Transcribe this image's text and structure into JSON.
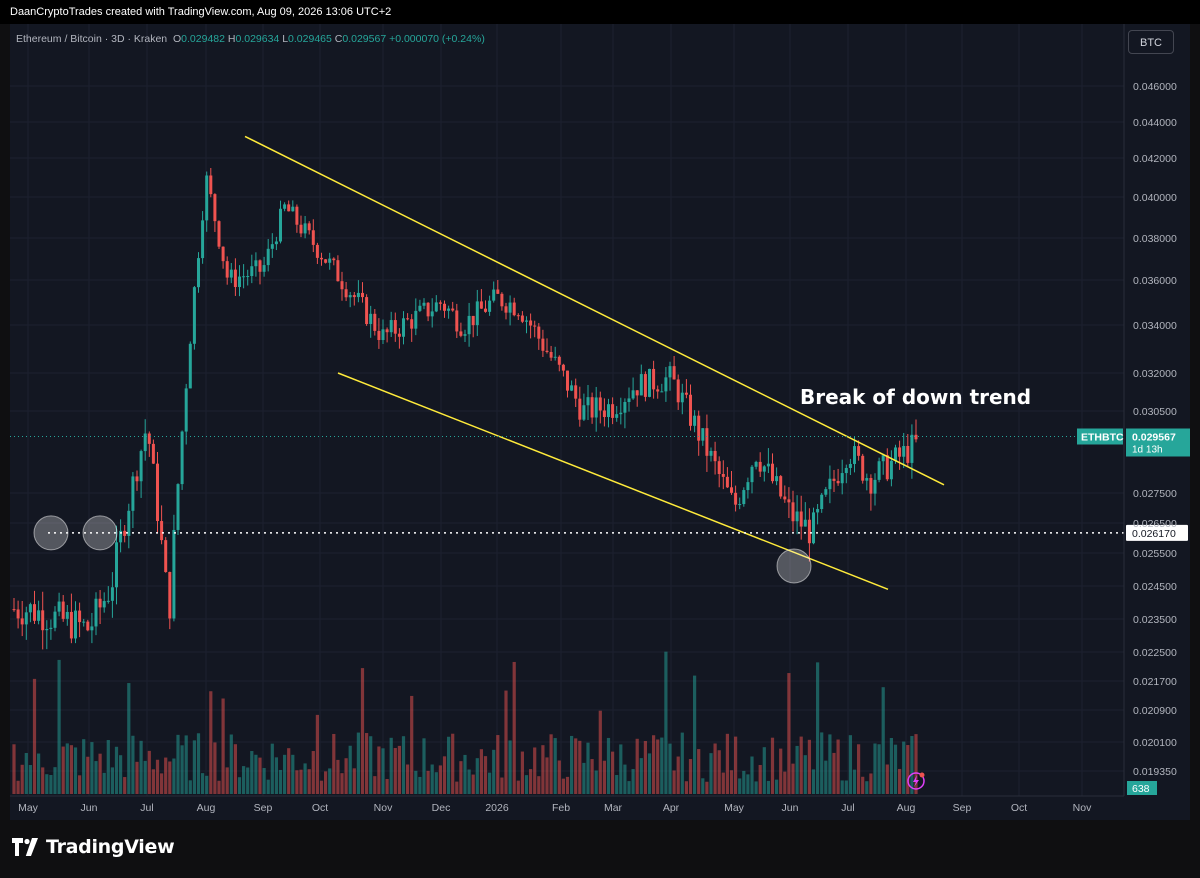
{
  "header": {
    "credit": "DaanCryptoTrades created with TradingView.com, Aug 09, 2026 13:06 UTC+2"
  },
  "legend": {
    "symbol": "Ethereum / Bitcoin · 3D · Kraken",
    "open_label": "O",
    "open": "0.029482",
    "high_label": "H",
    "high": "0.029634",
    "low_label": "L",
    "low": "0.029465",
    "close_label": "C",
    "close": "0.029567",
    "change": "+0.000070 (+0.24%)"
  },
  "toolbar": {
    "currency": "BTC"
  },
  "brand": {
    "name": "TradingView"
  },
  "colors": {
    "up": "#26a69a",
    "down": "#ef5350",
    "trendline": "#ffeb3b",
    "background": "#131722"
  },
  "chart_data": {
    "type": "candlestick",
    "symbol": "ETHBTC",
    "timeframe": "3D",
    "exchange": "Kraken",
    "y_axis": {
      "ticks": [
        "0.046000",
        "0.044000",
        "0.042000",
        "0.040000",
        "0.038000",
        "0.036000",
        "0.034000",
        "0.032000",
        "0.030500",
        "0.027500",
        "0.026500",
        "0.025500",
        "0.024500",
        "0.023500",
        "0.022500",
        "0.021700",
        "0.020900",
        "0.020100",
        "0.019350"
      ]
    },
    "x_axis": {
      "ticks": [
        "May",
        "Jun",
        "Jul",
        "Aug",
        "Sep",
        "Oct",
        "Nov",
        "Dec",
        "2026",
        "Feb",
        "Mar",
        "Apr",
        "May",
        "Jun",
        "Jul",
        "Aug",
        "Sep",
        "Oct",
        "Nov"
      ]
    },
    "price_label": {
      "symbol": "ETHBTC",
      "value": "0.029567",
      "countdown": "1d 13h"
    },
    "horizontal_level": {
      "value": "0.026170",
      "style": "dotted"
    },
    "volume_label": "638",
    "annotation": "Break of down trend",
    "trendlines": [
      {
        "name": "upper-channel",
        "from": [
          "Aug 2025",
          0.0432
        ],
        "to": [
          "Aug 2026",
          0.0278
        ]
      },
      {
        "name": "lower-channel",
        "from": [
          "Oct 2025",
          0.032
        ],
        "to": [
          "Jul 2026",
          0.0244
        ]
      }
    ],
    "highlighted_points": [
      {
        "date": "May 2025",
        "value": 0.02617
      },
      {
        "date": "Jun 2025",
        "value": 0.02617
      },
      {
        "date": "Jun 2026",
        "value": 0.02535
      }
    ],
    "close_path": [
      [
        "May 2025",
        0.0238
      ],
      [
        "Jun 2025",
        0.0245
      ],
      [
        "Jun 2025",
        0.0232
      ],
      [
        "Jul 2025",
        0.0236
      ],
      [
        "Jul 2025",
        0.03
      ],
      [
        "Aug 2025",
        0.036
      ],
      [
        "Aug 2025",
        0.041
      ],
      [
        "Sep 2025",
        0.0395
      ],
      [
        "Sep 2025",
        0.0365
      ],
      [
        "Oct 2025",
        0.036
      ],
      [
        "Nov 2025",
        0.0335
      ],
      [
        "Dec 2025",
        0.034
      ],
      [
        "Dec 2025",
        0.035
      ],
      [
        "Jan 2026",
        0.0348
      ],
      [
        "Jan 2026",
        0.0352
      ],
      [
        "Feb 2026",
        0.0305
      ],
      [
        "Mar 2026",
        0.0307
      ],
      [
        "Mar 2026",
        0.0315
      ],
      [
        "Apr 2026",
        0.0318
      ],
      [
        "May 2026",
        0.029
      ],
      [
        "May 2026",
        0.027
      ],
      [
        "Jun 2026",
        0.0262
      ],
      [
        "Jun 2026",
        0.0268
      ],
      [
        "Jul 2026",
        0.028
      ],
      [
        "Jul 2026",
        0.0291
      ],
      [
        "Aug 2026",
        0.0296
      ]
    ]
  }
}
